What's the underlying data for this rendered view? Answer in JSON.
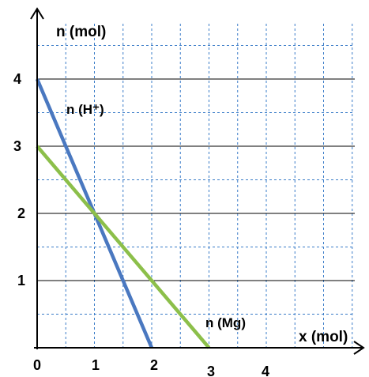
{
  "chart_data": {
    "type": "line",
    "ylabel": "n (mol)",
    "xlabel": "x (mol)",
    "x_ticks": [
      0,
      1,
      2,
      3,
      4
    ],
    "y_ticks": [
      1,
      2,
      3,
      4
    ],
    "xlim": [
      0,
      5.5
    ],
    "ylim": [
      0,
      4.8
    ],
    "grid": true,
    "series": [
      {
        "name": "n (H⁺)",
        "color": "#4a78c0",
        "points": [
          [
            0,
            4
          ],
          [
            2,
            0
          ]
        ]
      },
      {
        "name": "n (Mg)",
        "color": "#8cbf4a",
        "points": [
          [
            0,
            3
          ],
          [
            3,
            0
          ]
        ]
      }
    ]
  },
  "colors": {
    "axis": "#000000",
    "major_grid": "#000000",
    "minor_grid": "#3a7cc8"
  }
}
